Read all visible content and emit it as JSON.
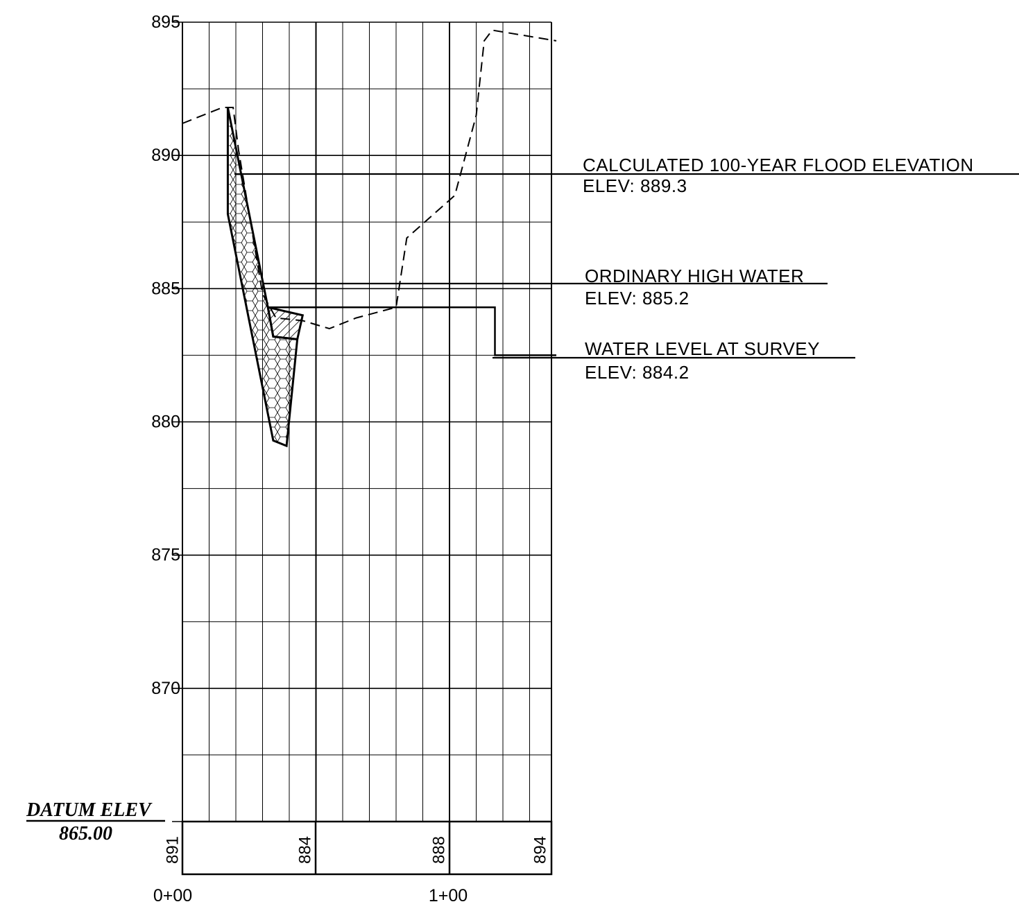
{
  "datum": {
    "label": "DATUM ELEV",
    "value": "865.00"
  },
  "chart_data": {
    "type": "line",
    "y_ticks": [
      "895",
      "890",
      "885",
      "880",
      "875",
      "870"
    ],
    "ylim": [
      865,
      895
    ],
    "x_ticks": [
      "0+00",
      "1+00"
    ],
    "xlim": [
      0,
      140
    ],
    "grid": true,
    "bottom_band_labels": [
      {
        "station": 0,
        "text": "891"
      },
      {
        "station": 50,
        "text": "884"
      },
      {
        "station": 100,
        "text": "888"
      },
      {
        "station": 138,
        "text": "894"
      }
    ],
    "existing_ground": [
      [
        0,
        891.2
      ],
      [
        15,
        891.8
      ],
      [
        19,
        891.8
      ],
      [
        21,
        890.2
      ],
      [
        30,
        884.8
      ],
      [
        35,
        883.9
      ],
      [
        45,
        883.8
      ],
      [
        55,
        883.5
      ],
      [
        65,
        883.9
      ],
      [
        80,
        884.3
      ],
      [
        84,
        886.9
      ],
      [
        102,
        888.5
      ],
      [
        110,
        891.5
      ],
      [
        113,
        894.3
      ],
      [
        116,
        894.7
      ],
      [
        140,
        894.3
      ]
    ],
    "riprap_polygon": [
      [
        17,
        891.8
      ],
      [
        32,
        884.3
      ],
      [
        34,
        883.2
      ],
      [
        43,
        883.1
      ],
      [
        39,
        879.1
      ],
      [
        34,
        879.3
      ],
      [
        17,
        887.8
      ]
    ],
    "hatched_polygon": [
      [
        32,
        884.3
      ],
      [
        45,
        884.0
      ],
      [
        43,
        883.1
      ],
      [
        34,
        883.2
      ]
    ],
    "water_line": [
      [
        32,
        884.3
      ],
      [
        117,
        884.3
      ],
      [
        117,
        882.5
      ],
      [
        140,
        882.5
      ]
    ],
    "annotations": [
      {
        "title": "CALCULATED 100-YEAR FLOOD ELEVATION",
        "elev_text": "ELEV: 889.3",
        "elevation": 889.3
      },
      {
        "title": "ORDINARY HIGH WATER",
        "elev_text": "ELEV: 885.2",
        "elevation": 885.2
      },
      {
        "title": "WATER LEVEL AT SURVEY",
        "elev_text": "ELEV: 884.2",
        "elevation": 884.2
      }
    ]
  }
}
